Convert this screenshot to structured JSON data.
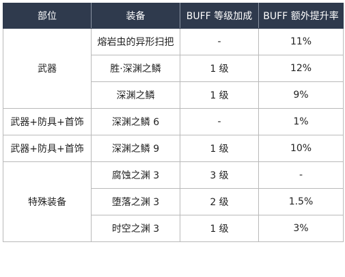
{
  "table": {
    "headers": [
      "部位",
      "装备",
      "BUFF 等级加成",
      "BUFF 额外提升率"
    ],
    "groups": [
      {
        "part": "武器",
        "rows": [
          {
            "equip": "熔岩虫的异形扫把",
            "level": "-",
            "rate": "11%"
          },
          {
            "equip": "胜·深渊之鳞",
            "level": "1 级",
            "rate": "12%"
          },
          {
            "equip": "深渊之鳞",
            "level": "1 级",
            "rate": "9%"
          }
        ]
      },
      {
        "part": "武器+防具+首饰",
        "rows": [
          {
            "equip": "深渊之鳞 6",
            "level": "-",
            "rate": "1%"
          }
        ]
      },
      {
        "part": "武器+防具+首饰",
        "rows": [
          {
            "equip": "深渊之鳞 9",
            "level": "1 级",
            "rate": "10%"
          }
        ]
      },
      {
        "part": "特殊装备",
        "rows": [
          {
            "equip": "腐蚀之渊 3",
            "level": "3 级",
            "rate": "-"
          },
          {
            "equip": "堕落之渊 3",
            "level": "2 级",
            "rate": "1.5%"
          },
          {
            "equip": "时空之渊 3",
            "level": "1 级",
            "rate": "3%"
          }
        ]
      }
    ]
  }
}
